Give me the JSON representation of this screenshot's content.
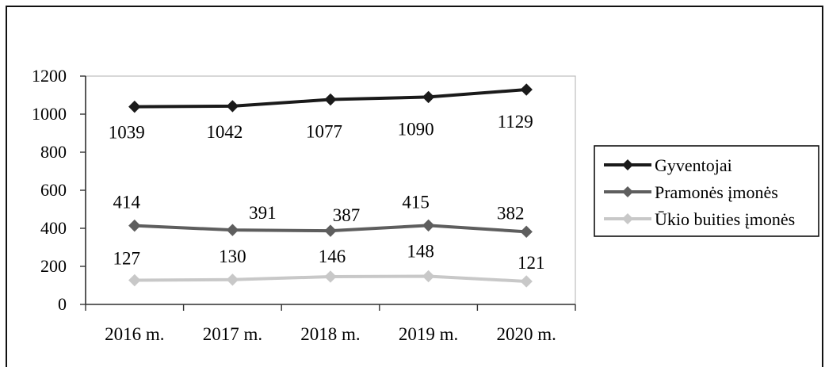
{
  "colors": {
    "frame": "#111111",
    "axis": "#333333",
    "gyventojai": "#1a1a1a",
    "pramones": "#5e5e5e",
    "ukio": "#c8c8c8"
  },
  "chart_data": {
    "type": "line",
    "title": "",
    "xlabel": "",
    "ylabel": "",
    "categories": [
      "2016 m.",
      "2017 m.",
      "2018 m.",
      "2019 m.",
      "2020 m."
    ],
    "ylim": [
      0,
      1200
    ],
    "yticks": [
      0,
      200,
      400,
      600,
      800,
      1000,
      1200
    ],
    "grid": false,
    "legend_position": "right",
    "series": [
      {
        "name": "Gyventojai",
        "values": [
          1039,
          1042,
          1077,
          1090,
          1129
        ],
        "color_key": "gyventojai",
        "marker": "diamond",
        "labels": [
          "1039",
          "1042",
          "1077",
          "1090",
          "1129"
        ]
      },
      {
        "name": "Pramonės įmonės",
        "values": [
          414,
          391,
          387,
          415,
          382
        ],
        "color_key": "pramones",
        "marker": "diamond",
        "labels": [
          "414",
          "391",
          "387",
          "415",
          "382"
        ]
      },
      {
        "name": "Ūkio buities įmonės",
        "values": [
          127,
          130,
          146,
          148,
          121
        ],
        "color_key": "ukio",
        "marker": "diamond",
        "labels": [
          "127",
          "130",
          "146",
          "148",
          "121"
        ]
      }
    ]
  }
}
